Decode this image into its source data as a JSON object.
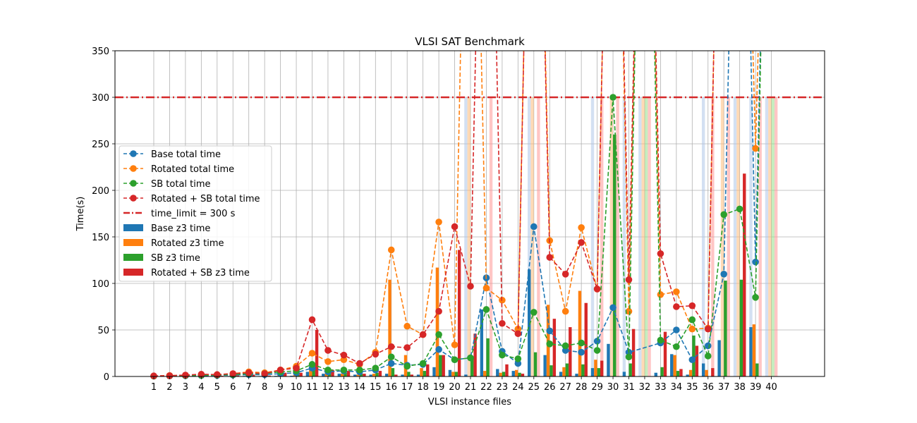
{
  "chart_data": {
    "type": "bar",
    "title": "VLSI SAT Benchmark",
    "xlabel": "VLSI instance files",
    "ylabel": "Time(s)",
    "ylim": [
      0,
      350
    ],
    "yticks": [
      0,
      50,
      100,
      150,
      200,
      250,
      300,
      350
    ],
    "grid": true,
    "legend_position": "center-left",
    "categories": [
      "1",
      "2",
      "3",
      "4",
      "5",
      "6",
      "7",
      "8",
      "9",
      "10",
      "11",
      "12",
      "13",
      "14",
      "15",
      "16",
      "17",
      "18",
      "19",
      "20",
      "21",
      "22",
      "23",
      "24",
      "25",
      "26",
      "27",
      "28",
      "29",
      "30",
      "31",
      "32",
      "33",
      "34",
      "35",
      "36",
      "37",
      "38",
      "39",
      "40"
    ],
    "time_limit": {
      "value": 300,
      "label": "time_limit = 300 s",
      "color": "#d62728"
    },
    "timeout_shade": {
      "color_base": "#aec7e8",
      "color_rotated": "#ffbb78",
      "color_sb": "#98df8a",
      "color_rotated_sb": "#ff9896",
      "values": {
        "Base": [
          null,
          null,
          null,
          null,
          null,
          null,
          null,
          null,
          null,
          null,
          null,
          null,
          null,
          null,
          null,
          null,
          null,
          null,
          null,
          null,
          300,
          null,
          null,
          null,
          300,
          null,
          null,
          null,
          300,
          null,
          300,
          300,
          null,
          null,
          null,
          300,
          null,
          300,
          300,
          300
        ],
        "Rotated": [
          null,
          null,
          null,
          null,
          null,
          null,
          null,
          null,
          null,
          null,
          null,
          null,
          null,
          null,
          null,
          null,
          null,
          null,
          null,
          null,
          300,
          null,
          null,
          null,
          300,
          null,
          null,
          null,
          null,
          300,
          null,
          300,
          null,
          null,
          null,
          null,
          300,
          300,
          null,
          300
        ],
        "SB": [
          null,
          null,
          null,
          null,
          null,
          null,
          null,
          null,
          null,
          null,
          null,
          null,
          null,
          null,
          null,
          null,
          null,
          null,
          null,
          null,
          null,
          null,
          null,
          null,
          null,
          null,
          null,
          null,
          null,
          null,
          null,
          300,
          null,
          null,
          null,
          null,
          null,
          null,
          null,
          300
        ],
        "Rotated + SB": [
          null,
          null,
          null,
          null,
          null,
          null,
          null,
          null,
          null,
          null,
          null,
          null,
          null,
          null,
          null,
          null,
          null,
          null,
          null,
          null,
          null,
          300,
          null,
          null,
          300,
          null,
          null,
          null,
          300,
          300,
          null,
          300,
          null,
          null,
          null,
          300,
          300,
          null,
          300,
          300
        ]
      }
    },
    "bar_series": [
      {
        "name": "Base z3 time",
        "color": "#1f77b4",
        "values": [
          0.1,
          0.2,
          0.3,
          0.4,
          0.4,
          0.5,
          0.6,
          0.5,
          0.7,
          0.8,
          5,
          3,
          3,
          2,
          2,
          3,
          2,
          2,
          10,
          7,
          2,
          72,
          8,
          6,
          115,
          23,
          5,
          3,
          9,
          35,
          5,
          0,
          4,
          24,
          2,
          14,
          39,
          0,
          53,
          0
        ]
      },
      {
        "name": "Rotated z3 time",
        "color": "#ff7f0e",
        "values": [
          0.1,
          0.3,
          0.4,
          0.5,
          0.5,
          0.6,
          0.9,
          0.8,
          1.2,
          1.5,
          8,
          3,
          3,
          2,
          3,
          104,
          23,
          9,
          117,
          5,
          0,
          6,
          4,
          7,
          0,
          77,
          10,
          92,
          18,
          0,
          0,
          0,
          0,
          23,
          7,
          7,
          0,
          0,
          56,
          0
        ]
      },
      {
        "name": "SB z3 time",
        "color": "#2ca02c",
        "values": [
          0.1,
          0.3,
          0.4,
          0.5,
          0.5,
          0.6,
          1,
          1,
          2,
          2,
          14,
          4,
          4,
          3,
          4,
          9,
          5,
          6,
          23,
          5,
          20,
          41,
          5,
          4,
          26,
          12,
          14,
          13,
          9,
          260,
          14,
          0,
          10,
          6,
          44,
          0,
          103,
          104,
          14,
          0
        ]
      },
      {
        "name": "Rotated + SB z3 time",
        "color": "#d62728",
        "values": [
          0.1,
          0.4,
          0.5,
          0.8,
          0.8,
          1,
          2,
          1,
          4,
          4,
          50,
          7,
          6,
          3,
          6,
          2,
          2,
          13,
          23,
          136,
          46,
          0,
          13,
          3,
          0,
          62,
          53,
          79,
          17,
          0,
          51,
          0,
          48,
          8,
          33,
          9,
          0,
          218,
          0,
          0
        ]
      }
    ],
    "line_series": [
      {
        "name": "Base total time",
        "color": "#1f77b4",
        "values": [
          0.4,
          0.6,
          0.8,
          1,
          1.1,
          1.5,
          2,
          2,
          3,
          4,
          9,
          5,
          6,
          5,
          7,
          14,
          12,
          13,
          29,
          18,
          20,
          106,
          27,
          14,
          161,
          49,
          28,
          26,
          38,
          74,
          26,
          null,
          36,
          50,
          18,
          33,
          110,
          null,
          123,
          null
        ]
      },
      {
        "name": "Rotated total time",
        "color": "#ff7f0e",
        "values": [
          0.5,
          1,
          1.3,
          1.6,
          2,
          3,
          5,
          4,
          7,
          11,
          25,
          16,
          18,
          13,
          26,
          136,
          54,
          45,
          166,
          34,
          null,
          95,
          82,
          51,
          null,
          146,
          70,
          160,
          94,
          null,
          70,
          null,
          88,
          91,
          51,
          52,
          null,
          null,
          245,
          null
        ]
      },
      {
        "name": "SB total time",
        "color": "#2ca02c",
        "values": [
          0.4,
          0.6,
          1,
          1.3,
          1.5,
          2,
          3,
          3,
          5,
          6,
          13,
          7,
          7,
          7,
          9,
          21,
          11,
          14,
          45,
          18,
          20,
          72,
          23,
          19,
          69,
          35,
          33,
          36,
          28,
          300,
          21,
          null,
          39,
          32,
          61,
          22,
          174,
          180,
          85,
          null
        ]
      },
      {
        "name": "Rotated + SB total time",
        "color": "#d62728",
        "values": [
          0.6,
          0.8,
          1.5,
          2.4,
          2,
          3,
          4,
          3,
          7,
          9,
          61,
          28,
          23,
          14,
          24,
          32,
          31,
          45,
          70,
          161,
          97,
          null,
          57,
          46,
          null,
          128,
          110,
          144,
          94,
          null,
          104,
          null,
          132,
          75,
          76,
          51,
          null,
          null,
          null,
          null
        ]
      }
    ],
    "line_offchart": {
      "Base total time": [
        20,
        24,
        37,
        39
      ],
      "Rotated total time": [
        20,
        24,
        29,
        31,
        36,
        37,
        39
      ],
      "SB total time": [
        31,
        38,
        39
      ],
      "Rotated + SB total time": [
        20,
        21,
        24,
        28,
        29,
        30,
        31,
        35,
        36,
        37
      ]
    },
    "legend": [
      "Base total time",
      "Rotated total time",
      "SB total time",
      "Rotated + SB total time",
      "time_limit = 300 s",
      "Base z3 time",
      "Rotated z3 time",
      "SB z3 time",
      "Rotated + SB z3 time"
    ]
  }
}
